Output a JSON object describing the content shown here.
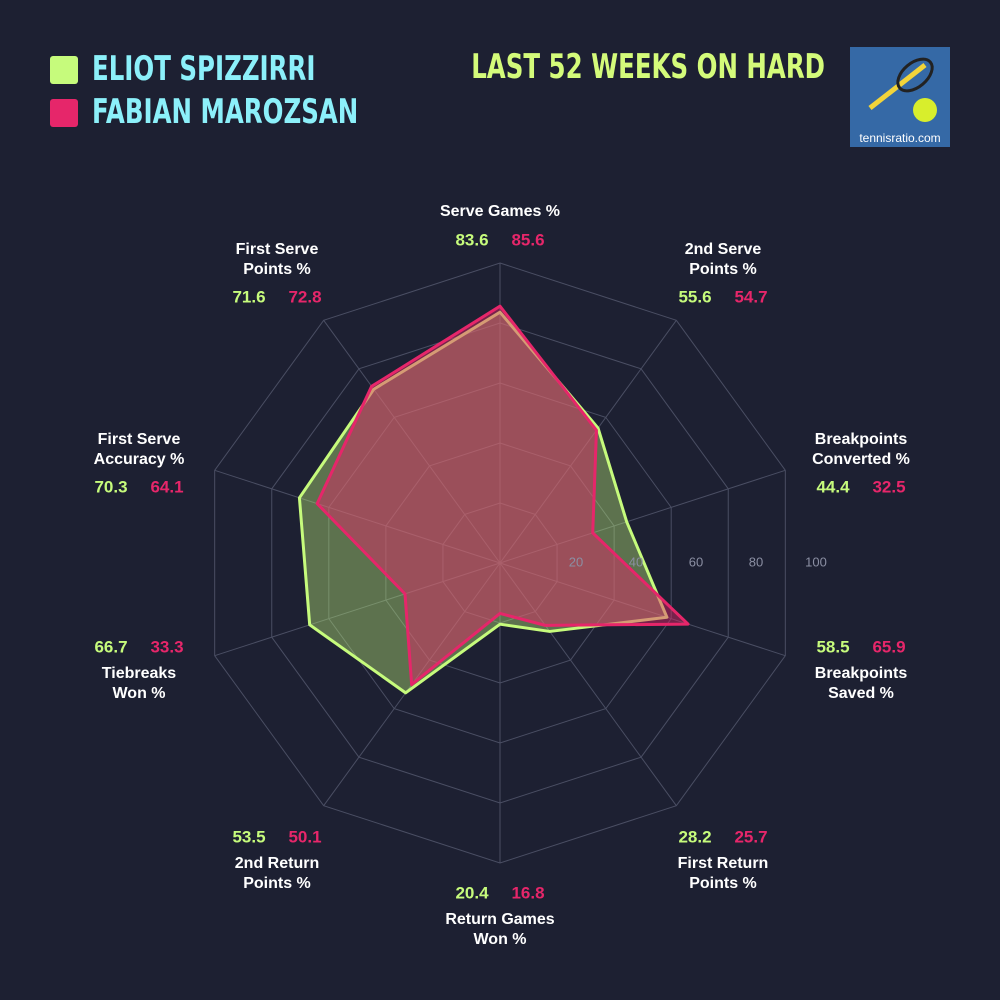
{
  "chart_data": {
    "type": "radar",
    "title": "LAST 52 WEEKS ON HARD",
    "categories": [
      [
        "Serve Games %"
      ],
      [
        "2nd Serve",
        "Points %"
      ],
      [
        "Breakpoints",
        "Converted %"
      ],
      [
        "Breakpoints",
        "Saved %"
      ],
      [
        "First Return",
        "Points %"
      ],
      [
        "Return Games",
        "Won %"
      ],
      [
        "2nd Return",
        "Points %"
      ],
      [
        "Tiebreaks",
        "Won %"
      ],
      [
        "First Serve",
        "Accuracy %"
      ],
      [
        "First Serve",
        "Points %"
      ]
    ],
    "series": [
      {
        "name": "ELIOT SPIZZIRRI",
        "color": "#c6fb7c",
        "values": [
          83.6,
          55.6,
          44.4,
          58.5,
          28.2,
          20.4,
          53.5,
          66.7,
          70.3,
          71.6
        ]
      },
      {
        "name": "FABIAN MAROZSAN",
        "color": "#e6266a",
        "values": [
          85.6,
          54.7,
          32.5,
          65.9,
          25.7,
          16.8,
          50.1,
          33.3,
          64.1,
          72.8
        ]
      }
    ],
    "rlim": [
      0,
      100
    ],
    "rticks": [
      20,
      40,
      60,
      80,
      100
    ],
    "grid": true
  },
  "watermark": "tennisratio.com"
}
